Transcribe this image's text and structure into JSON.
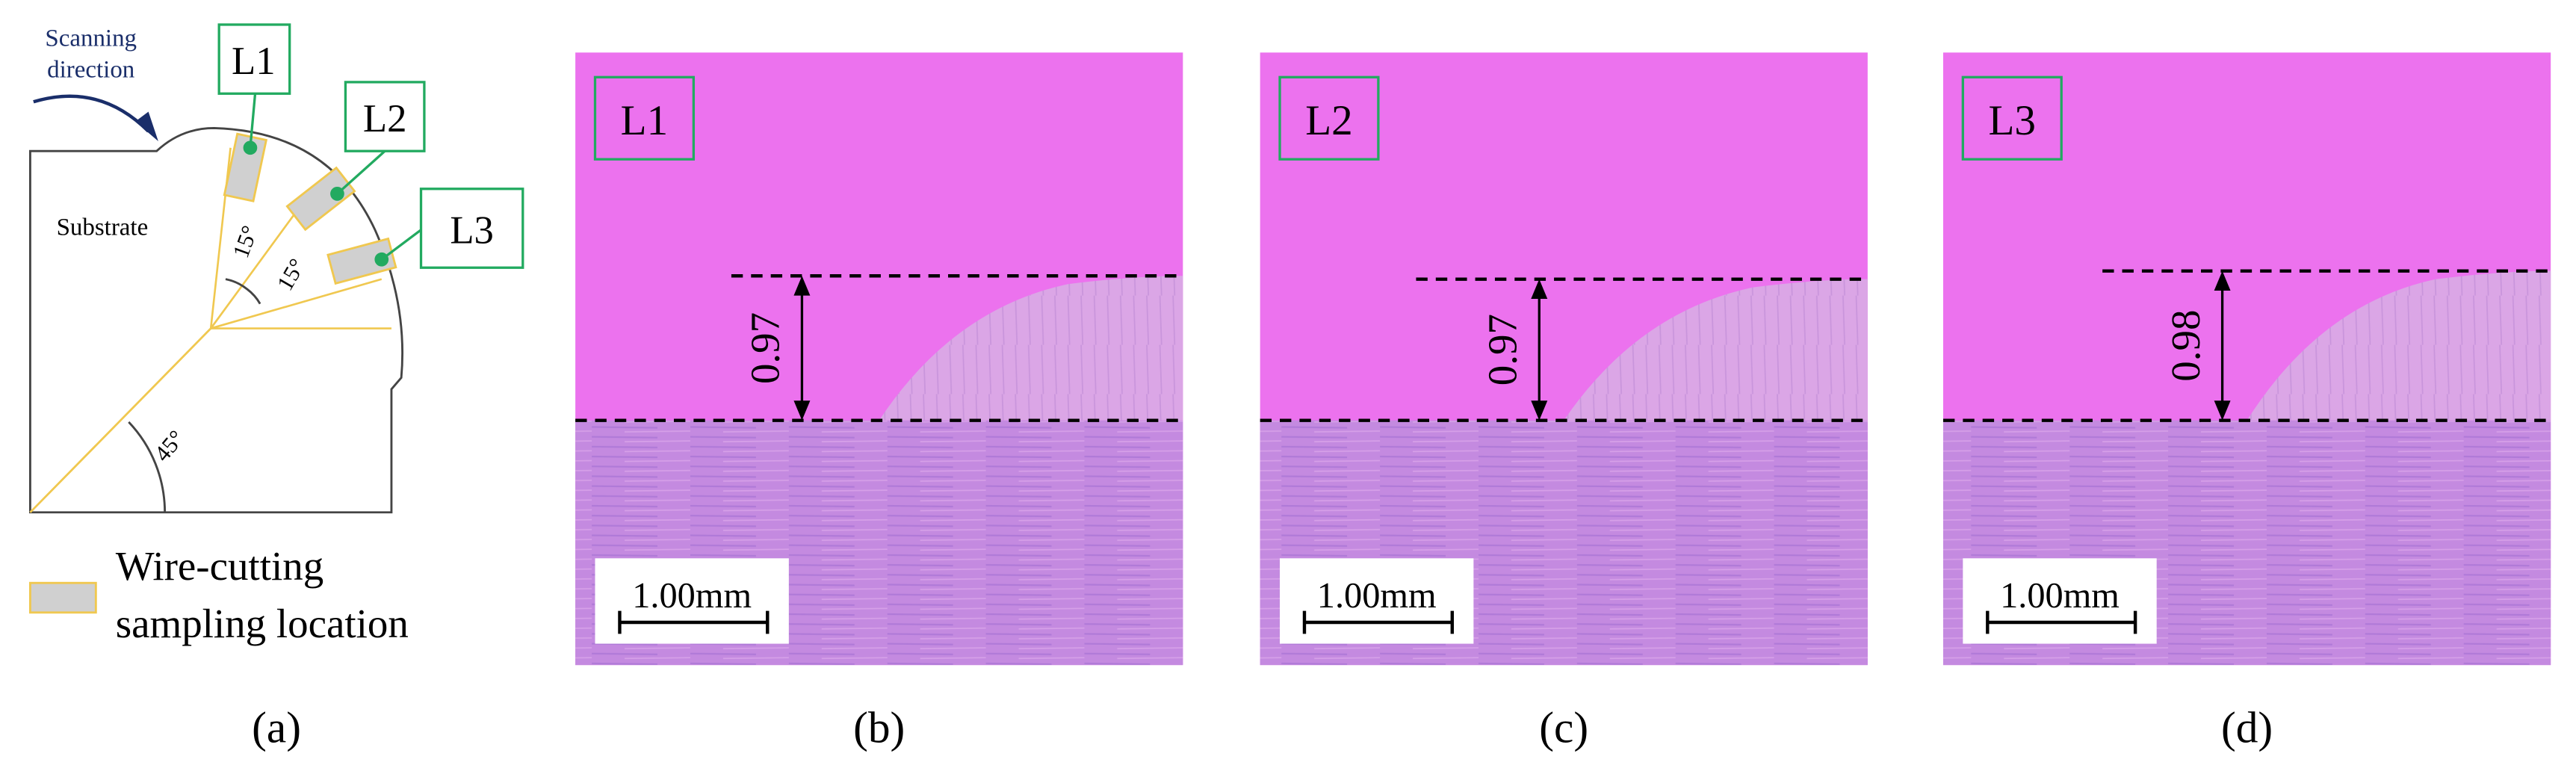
{
  "panel_a": {
    "scanning_direction": [
      "Scanning",
      "direction"
    ],
    "substrate": "Substrate",
    "locations": [
      "L1",
      "L2",
      "L3"
    ],
    "angles": [
      "15°",
      "15°",
      "45°"
    ],
    "legend": [
      "Wire-cutting",
      "sampling location"
    ],
    "caption": "(a)"
  },
  "micrographs": [
    {
      "label": "L1",
      "height": 0.97,
      "scale_bar": "1.00mm",
      "caption": "(b)"
    },
    {
      "label": "L2",
      "height": 0.97,
      "scale_bar": "1.00mm",
      "caption": "(c)"
    },
    {
      "label": "L3",
      "height": 0.98,
      "scale_bar": "1.00mm",
      "caption": "(d)"
    }
  ]
}
